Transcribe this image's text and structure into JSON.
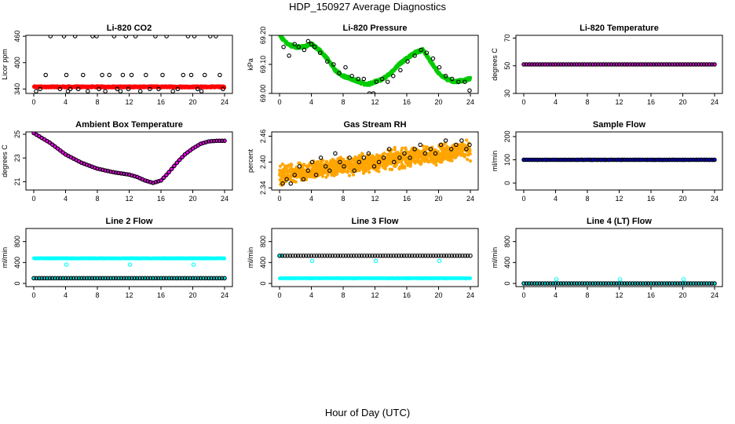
{
  "figure": {
    "title": "HDP_150927  Average Diagnostics",
    "xlabel": "Hour of Day (UTC)"
  },
  "colors": {
    "black": "#000000",
    "red": "#ff0000",
    "magenta": "#ff00ff",
    "green": "#00cc00",
    "orange": "#ffa500",
    "blue": "#0000ff",
    "cyan": "#00ffff"
  },
  "chart_data": [
    {
      "type": "scatter",
      "title": "Li-820 CO2",
      "ylabel": "Licor ppm",
      "xlim": [
        0,
        24
      ],
      "ylim": [
        330,
        462
      ],
      "xticks": [
        0,
        4,
        8,
        12,
        16,
        20,
        24
      ],
      "yticks": [
        340,
        400,
        460
      ],
      "series": [
        {
          "name": "primary",
          "color": "red",
          "marker": "filled",
          "kind": "dense",
          "y_mean": 345,
          "y_jitter": 2
        },
        {
          "name": "secondary",
          "color": "black",
          "marker": "open",
          "x": [
            0.3,
            0.8,
            1.5,
            2.1,
            3.3,
            3.8,
            4.1,
            4.3,
            4.6,
            5.2,
            5.6,
            6.2,
            6.8,
            7.4,
            7.9,
            8.2,
            8.6,
            9.0,
            9.5,
            10.1,
            10.5,
            10.9,
            11.2,
            11.6,
            11.9,
            12.3,
            12.8,
            13.4,
            14.1,
            14.6,
            15.3,
            15.7,
            16.2,
            16.7,
            17.5,
            18.1,
            18.8,
            19.4,
            19.8,
            20.2,
            20.6,
            21.1,
            21.5,
            22.2,
            22.9,
            23.4,
            23.8
          ],
          "y": [
            335,
            340,
            372,
            460,
            340,
            460,
            372,
            335,
            340,
            460,
            340,
            372,
            335,
            460,
            460,
            340,
            372,
            335,
            372,
            460,
            340,
            335,
            372,
            460,
            340,
            372,
            460,
            335,
            372,
            340,
            460,
            340,
            372,
            460,
            335,
            340,
            372,
            460,
            372,
            460,
            340,
            335,
            372,
            460,
            460,
            372,
            340
          ]
        }
      ]
    },
    {
      "type": "scatter",
      "title": "Li-820 Pressure",
      "ylabel": "kPa",
      "xlim": [
        0,
        24
      ],
      "ylim": [
        69.0,
        69.2
      ],
      "xticks": [
        0,
        4,
        8,
        12,
        16,
        20,
        24
      ],
      "yticks": [
        69.0,
        69.1,
        69.2
      ],
      "ytick_labels": [
        "69.00",
        "69.10",
        "69.20"
      ],
      "series": [
        {
          "name": "primary",
          "color": "green",
          "marker": "filled",
          "kind": "dense",
          "key_x": [
            0,
            1,
            2,
            3,
            4,
            5,
            6,
            7,
            8,
            9,
            10,
            11,
            12,
            13,
            14,
            15,
            16,
            17,
            18,
            19,
            20,
            21,
            22,
            23,
            24
          ],
          "key_y": [
            69.2,
            69.17,
            69.16,
            69.16,
            69.17,
            69.15,
            69.12,
            69.08,
            69.06,
            69.05,
            69.04,
            69.03,
            69.04,
            69.05,
            69.07,
            69.1,
            69.12,
            69.14,
            69.15,
            69.11,
            69.07,
            69.05,
            69.04,
            69.045,
            69.05
          ],
          "y_jitter": 0.005
        },
        {
          "name": "secondary",
          "color": "black",
          "marker": "open",
          "x": [
            0.5,
            1.2,
            1.9,
            2.4,
            3.1,
            3.6,
            4.0,
            4.4,
            5.1,
            6.0,
            6.8,
            7.5,
            8.3,
            9.1,
            9.9,
            10.6,
            11.3,
            11.8,
            12.2,
            12.9,
            13.6,
            14.3,
            15.2,
            16.1,
            17.0,
            17.8,
            18.5,
            19.3,
            20.1,
            20.9,
            21.7,
            22.5,
            23.3,
            23.9
          ],
          "y": [
            69.16,
            69.13,
            69.17,
            69.16,
            69.15,
            69.18,
            69.17,
            69.16,
            69.14,
            69.11,
            69.1,
            69.07,
            69.09,
            69.06,
            69.05,
            69.05,
            69.0,
            69.0,
            69.04,
            69.05,
            69.04,
            69.06,
            69.08,
            69.11,
            69.13,
            69.15,
            69.14,
            69.12,
            69.09,
            69.06,
            69.05,
            69.04,
            69.04,
            69.01
          ]
        }
      ]
    },
    {
      "type": "scatter",
      "title": "Li-820 Temperature",
      "ylabel": "degrees C",
      "xlim": [
        0,
        24
      ],
      "ylim": [
        30,
        72
      ],
      "xticks": [
        0,
        4,
        8,
        12,
        16,
        20,
        24
      ],
      "yticks": [
        30,
        50,
        70
      ],
      "series": [
        {
          "name": "primary",
          "color": "magenta",
          "marker": "filled",
          "kind": "dense",
          "y_mean": 51,
          "y_jitter": 0.1
        },
        {
          "name": "secondary",
          "color": "black",
          "marker": "open",
          "kind": "grid",
          "y_mean": 51
        }
      ]
    },
    {
      "type": "scatter",
      "title": "Ambient Box Temperature",
      "ylabel": "degrees C",
      "xlim": [
        0,
        24
      ],
      "ylim": [
        20.3,
        25.2
      ],
      "xticks": [
        0,
        4,
        8,
        12,
        16,
        20,
        24
      ],
      "yticks": [
        21,
        23,
        25
      ],
      "series": [
        {
          "name": "primary",
          "color": "magenta",
          "marker": "filled",
          "kind": "dense",
          "key_x": [
            0,
            2,
            4,
            6,
            8,
            10,
            12,
            13,
            14,
            15,
            16,
            17,
            18,
            19,
            20,
            21,
            22,
            23,
            24
          ],
          "key_y": [
            25.1,
            24.3,
            23.3,
            22.6,
            22.1,
            21.8,
            21.6,
            21.4,
            21.1,
            20.9,
            21.1,
            21.8,
            22.6,
            23.3,
            23.8,
            24.2,
            24.4,
            24.45,
            24.45
          ],
          "y_jitter": 0.03
        },
        {
          "name": "secondary",
          "color": "black",
          "marker": "open",
          "kind": "grid"
        }
      ]
    },
    {
      "type": "scatter",
      "title": "Gas Stream RH",
      "ylabel": "percent",
      "xlim": [
        0,
        24
      ],
      "ylim": [
        2.335,
        2.47
      ],
      "xticks": [
        0,
        4,
        8,
        12,
        16,
        20,
        24
      ],
      "yticks": [
        2.34,
        2.4,
        2.46
      ],
      "ytick_labels": [
        "2.34",
        "2.40",
        "2.46"
      ],
      "series": [
        {
          "name": "primary",
          "color": "orange",
          "marker": "filled",
          "kind": "noisy",
          "y_start": 2.37,
          "y_end": 2.43,
          "y_spread": 0.03
        },
        {
          "name": "secondary",
          "color": "black",
          "marker": "open",
          "x": [
            0.4,
            0.9,
            1.4,
            1.9,
            2.5,
            3.0,
            3.6,
            4.1,
            4.6,
            5.2,
            5.8,
            6.3,
            7.0,
            7.6,
            8.1,
            8.8,
            9.4,
            10.0,
            10.6,
            11.2,
            11.9,
            12.5,
            13.1,
            13.8,
            14.4,
            15.1,
            15.7,
            16.4,
            17.0,
            17.7,
            18.3,
            19.0,
            19.6,
            20.3,
            20.9,
            21.6,
            22.2,
            22.9,
            23.5,
            23.9
          ],
          "y": [
            2.35,
            2.36,
            2.35,
            2.37,
            2.39,
            2.36,
            2.38,
            2.4,
            2.37,
            2.41,
            2.39,
            2.38,
            2.42,
            2.4,
            2.39,
            2.41,
            2.38,
            2.4,
            2.41,
            2.42,
            2.39,
            2.4,
            2.41,
            2.43,
            2.4,
            2.41,
            2.42,
            2.41,
            2.43,
            2.44,
            2.42,
            2.43,
            2.42,
            2.44,
            2.45,
            2.43,
            2.44,
            2.45,
            2.43,
            2.44
          ]
        }
      ]
    },
    {
      "type": "scatter",
      "title": "Sample Flow",
      "ylabel": "ml/min",
      "xlim": [
        0,
        24
      ],
      "ylim": [
        -30,
        220
      ],
      "xticks": [
        0,
        4,
        8,
        12,
        16,
        20,
        24
      ],
      "yticks": [
        0,
        100,
        200
      ],
      "series": [
        {
          "name": "primary",
          "color": "blue",
          "marker": "filled",
          "kind": "dense",
          "y_mean": 100,
          "y_jitter": 2
        },
        {
          "name": "secondary",
          "color": "black",
          "marker": "open",
          "kind": "grid",
          "y_mean": 100
        }
      ]
    },
    {
      "type": "scatter",
      "title": "Line 2 Flow",
      "ylabel": "ml/min",
      "xlim": [
        0,
        24
      ],
      "ylim": [
        -60,
        1050
      ],
      "xticks": [
        0,
        4,
        8,
        12,
        16,
        20,
        24
      ],
      "yticks": [
        0,
        400,
        800
      ],
      "series": [
        {
          "name": "primary-high",
          "color": "cyan",
          "marker": "filled",
          "kind": "dense",
          "y_mean": 480,
          "y_jitter": 6
        },
        {
          "name": "primary-low",
          "color": "cyan",
          "marker": "filled",
          "kind": "dense",
          "y_mean": 100,
          "y_jitter": 4
        },
        {
          "name": "secondary",
          "color": "black",
          "marker": "open",
          "kind": "grid",
          "y_mean": 100
        },
        {
          "name": "outliers",
          "color": "cyan",
          "marker": "open",
          "x": [
            4.1,
            12.1,
            20.1
          ],
          "y": [
            360,
            360,
            360
          ]
        }
      ]
    },
    {
      "type": "scatter",
      "title": "Line 3 Flow",
      "ylabel": "ml/min",
      "xlim": [
        0,
        24
      ],
      "ylim": [
        -60,
        1050
      ],
      "xticks": [
        0,
        4,
        8,
        12,
        16,
        20,
        24
      ],
      "yticks": [
        0,
        400,
        800
      ],
      "series": [
        {
          "name": "primary-low",
          "color": "cyan",
          "marker": "filled",
          "kind": "dense",
          "y_mean": 100,
          "y_jitter": 5
        },
        {
          "name": "primary-high",
          "color": "cyan",
          "marker": "filled",
          "kind": "dense",
          "y_mean": 530,
          "y_jitter": 4,
          "x_range": [
            0,
            0.3
          ]
        },
        {
          "name": "secondary",
          "color": "black",
          "marker": "open",
          "kind": "grid",
          "y_mean": 530
        },
        {
          "name": "outliers",
          "color": "cyan",
          "marker": "open",
          "x": [
            4.1,
            12.1,
            20.1
          ],
          "y": [
            430,
            430,
            430
          ]
        }
      ]
    },
    {
      "type": "scatter",
      "title": "Line 4 (LT) Flow",
      "ylabel": "ml/min",
      "xlim": [
        0,
        24
      ],
      "ylim": [
        -60,
        1050
      ],
      "xticks": [
        0,
        4,
        8,
        12,
        16,
        20,
        24
      ],
      "yticks": [
        0,
        400,
        800
      ],
      "series": [
        {
          "name": "primary",
          "color": "cyan",
          "marker": "filled",
          "kind": "dense",
          "y_mean": 0,
          "y_jitter": 3
        },
        {
          "name": "secondary",
          "color": "black",
          "marker": "open",
          "kind": "grid",
          "y_mean": 0
        },
        {
          "name": "outliers",
          "color": "cyan",
          "marker": "open",
          "x": [
            4.1,
            12.1,
            20.1
          ],
          "y": [
            80,
            80,
            80
          ]
        }
      ]
    }
  ]
}
